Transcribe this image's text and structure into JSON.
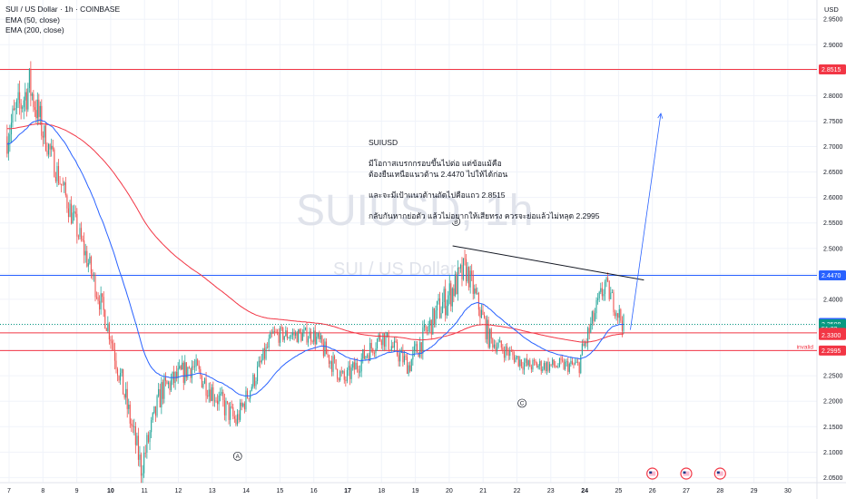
{
  "header": {
    "symbol_line": "SUI / US Dollar · 1h · COINBASE",
    "indicators": [
      "EMA (50, close)",
      "EMA (200, close)"
    ]
  },
  "watermark": {
    "big": "SUIUSD, 1h",
    "small": "SUI / US Dollar"
  },
  "annotation": {
    "title": "SUIUSD",
    "lines": [
      "มีโอกาสเบรกกรอบขึ้นไปต่อ แต่ข้อแม้คือ",
      "ต้องยืนเหนือแนวต้าน 2.4470 ไปให้ได้ก่อน",
      "",
      "และจะมีเป้าแนวต้านถัดไปคือแถว 2.8515",
      "",
      "กลับกันหากย่อตัว แล้วไม่อยากให้เสียทรง ควรจะย่อแล้วไม่หลุด 2.2995"
    ]
  },
  "axis": {
    "currency": "USD"
  },
  "colors": {
    "up": "#26a69a",
    "down": "#ef5350",
    "ema50": "#2962ff",
    "ema200": "#f23645",
    "level_red": "#f23645",
    "grid": "#f0f3fa",
    "last_price": "#089981"
  },
  "chart_data": {
    "type": "candlestick",
    "y_range": [
      2.04,
      2.97
    ],
    "y_ticks": [
      "2.9500",
      "2.9000",
      "2.8500",
      "2.8000",
      "2.7500",
      "2.7000",
      "2.6500",
      "2.6000",
      "2.5500",
      "2.5000",
      "2.4500",
      "2.4000",
      "2.3500",
      "2.3000",
      "2.2500",
      "2.2000",
      "2.1500",
      "2.1000",
      "2.0500"
    ],
    "x_ticks": [
      "7",
      "8",
      "9",
      "10",
      "11",
      "12",
      "13",
      "14",
      "15",
      "16",
      "17",
      "18",
      "19",
      "20",
      "21",
      "22",
      "23",
      "24",
      "25",
      "26",
      "27",
      "28",
      "29",
      "30"
    ],
    "x_ticks_bold": [
      "10",
      "17",
      "24"
    ],
    "price_labels": [
      {
        "text": "2.8515",
        "value": 2.8515,
        "color": "#f23645"
      },
      {
        "text": "2.4470",
        "value": 2.447,
        "color": "#2962ff"
      },
      {
        "text": "2.3535",
        "value": 2.3535,
        "color": "#2962ff"
      },
      {
        "text": "2.3508",
        "value": 2.3508,
        "color": "#089981"
      },
      {
        "text": "51:23",
        "value": 2.3418,
        "color": "#089981"
      },
      {
        "text": "2.3342",
        "value": 2.3342,
        "color": "#f23645"
      },
      {
        "text": "2.3300",
        "value": 2.33,
        "color": "#f23645"
      },
      {
        "text": "2.2995",
        "value": 2.2995,
        "color": "#f23645"
      }
    ],
    "horizontal_levels": [
      {
        "value": 2.8515,
        "color": "#f23645",
        "label": ""
      },
      {
        "value": 2.447,
        "color": "#2962ff",
        "label": ""
      },
      {
        "value": 2.3342,
        "color": "#f23645",
        "label": ""
      },
      {
        "value": 2.2995,
        "color": "#f23645",
        "label": "invalid"
      }
    ],
    "trendline": {
      "from": [
        20.1,
        2.505
      ],
      "to": [
        25.75,
        2.438
      ]
    },
    "projection": [
      [
        25.35,
        2.34
      ],
      [
        26.25,
        2.765
      ]
    ],
    "wave_labels": [
      {
        "text": "A",
        "x": 13.75,
        "y": 2.092
      },
      {
        "text": "B",
        "x": 20.2,
        "y": 2.553
      },
      {
        "text": "C",
        "x": 22.15,
        "y": 2.196
      }
    ],
    "events_x": [
      26.0,
      27.0,
      28.0
    ],
    "candles_segments": [
      {
        "from_day": 6.9,
        "to_day": 7.6,
        "start": 2.72,
        "end": 2.82,
        "vol": 0.05
      },
      {
        "from_day": 7.6,
        "to_day": 8.0,
        "start": 2.82,
        "end": 2.73,
        "vol": 0.045
      },
      {
        "from_day": 8.0,
        "to_day": 9.3,
        "start": 2.73,
        "end": 2.48,
        "vol": 0.032
      },
      {
        "from_day": 9.3,
        "to_day": 10.0,
        "start": 2.48,
        "end": 2.33,
        "vol": 0.03
      },
      {
        "from_day": 10.0,
        "to_day": 10.9,
        "start": 2.33,
        "end": 2.07,
        "vol": 0.035
      },
      {
        "from_day": 10.9,
        "to_day": 11.5,
        "start": 2.07,
        "end": 2.22,
        "vol": 0.035
      },
      {
        "from_day": 11.5,
        "to_day": 12.4,
        "start": 2.22,
        "end": 2.27,
        "vol": 0.03
      },
      {
        "from_day": 12.4,
        "to_day": 13.7,
        "start": 2.27,
        "end": 2.16,
        "vol": 0.03
      },
      {
        "from_day": 13.7,
        "to_day": 14.8,
        "start": 2.16,
        "end": 2.33,
        "vol": 0.025
      },
      {
        "from_day": 14.8,
        "to_day": 16.0,
        "start": 2.33,
        "end": 2.33,
        "vol": 0.02
      },
      {
        "from_day": 16.0,
        "to_day": 16.9,
        "start": 2.33,
        "end": 2.24,
        "vol": 0.025
      },
      {
        "from_day": 16.9,
        "to_day": 18.0,
        "start": 2.24,
        "end": 2.33,
        "vol": 0.025
      },
      {
        "from_day": 18.0,
        "to_day": 18.8,
        "start": 2.33,
        "end": 2.27,
        "vol": 0.025
      },
      {
        "from_day": 18.8,
        "to_day": 19.6,
        "start": 2.27,
        "end": 2.37,
        "vol": 0.03
      },
      {
        "from_day": 19.6,
        "to_day": 20.5,
        "start": 2.37,
        "end": 2.46,
        "vol": 0.04
      },
      {
        "from_day": 20.5,
        "to_day": 21.2,
        "start": 2.46,
        "end": 2.32,
        "vol": 0.03
      },
      {
        "from_day": 21.2,
        "to_day": 22.3,
        "start": 2.32,
        "end": 2.27,
        "vol": 0.02
      },
      {
        "from_day": 22.3,
        "to_day": 23.8,
        "start": 2.27,
        "end": 2.27,
        "vol": 0.018
      },
      {
        "from_day": 23.8,
        "to_day": 24.6,
        "start": 2.27,
        "end": 2.43,
        "vol": 0.03
      },
      {
        "from_day": 24.6,
        "to_day": 25.15,
        "start": 2.43,
        "end": 2.35,
        "vol": 0.025
      }
    ]
  }
}
